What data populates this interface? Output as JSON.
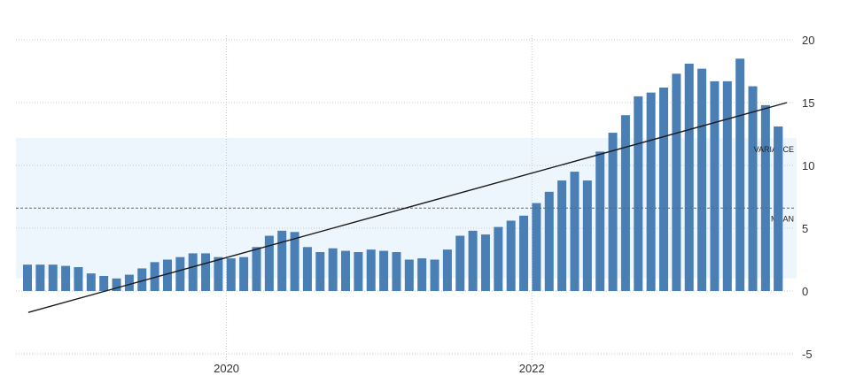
{
  "chart_data": {
    "type": "bar",
    "title": "",
    "xlabel": "",
    "ylabel": "",
    "ylim": [
      -5,
      20
    ],
    "yticks": [
      -5,
      0,
      5,
      10,
      15,
      20
    ],
    "xticks": [
      {
        "label": "2020",
        "index": 16
      },
      {
        "label": "2022",
        "index": 40
      }
    ],
    "grid": true,
    "bar_color": "#4a7fb5",
    "values": [
      2.1,
      2.1,
      2.1,
      2.0,
      1.9,
      1.4,
      1.2,
      1.0,
      1.3,
      1.8,
      2.3,
      2.5,
      2.7,
      3.0,
      3.0,
      2.7,
      2.6,
      2.7,
      3.5,
      4.4,
      4.8,
      4.7,
      3.5,
      3.1,
      3.4,
      3.2,
      3.1,
      3.3,
      3.2,
      3.1,
      2.5,
      2.6,
      2.5,
      3.3,
      4.4,
      4.8,
      4.5,
      5.1,
      5.6,
      6.0,
      7.0,
      7.9,
      8.8,
      9.5,
      8.8,
      11.1,
      12.6,
      14.0,
      15.5,
      15.8,
      16.2,
      17.3,
      18.1,
      17.7,
      16.7,
      16.7,
      18.5,
      16.3,
      14.8,
      13.1
    ],
    "trend_line": {
      "start": -1.7,
      "end": 15.0
    },
    "mean": {
      "label": "MEAN",
      "value": 6.6
    },
    "variance_band": {
      "label": "VARIANCE",
      "lower": 1.0,
      "upper": 12.2
    }
  }
}
